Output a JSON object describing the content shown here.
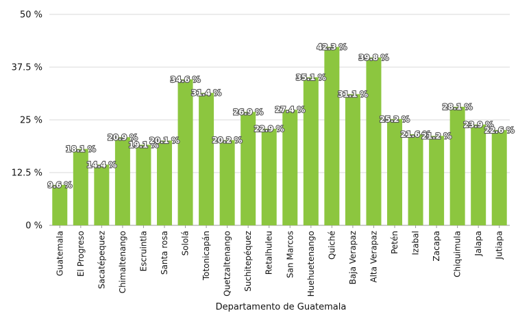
{
  "chart_data": {
    "type": "bar",
    "title": "",
    "xlabel": "Departamento de Guatemala",
    "ylabel": "",
    "ylim": [
      0,
      50
    ],
    "yticks": [
      "0 %",
      "12.5 %",
      "25 %",
      "37.5 %",
      "50 %"
    ],
    "ytick_values": [
      0,
      12.5,
      25,
      37.5,
      50
    ],
    "grid": true,
    "bar_color": "#8cc63f",
    "categories": [
      "Guatemala",
      "El Progreso",
      "Sacatépequez",
      "Chimaltenango",
      "Escruintla",
      "Santa rosa",
      "Sololá",
      "Totonicapán",
      "Quetzaltenango",
      "Suchitepéquez",
      "Retalhuleu",
      "San Marcos",
      "Huehuetenango",
      "Quiché",
      "Baja Verapaz",
      "Alta Verapaz",
      "Petén",
      "Izabal",
      "Zacapa",
      "Chiquimula",
      "Jalapa",
      "Jutiapa"
    ],
    "values": [
      9.6,
      18.1,
      14.4,
      20.9,
      19.1,
      20.1,
      34.6,
      31.4,
      20.2,
      26.9,
      22.9,
      27.4,
      35.1,
      42.3,
      31.1,
      39.8,
      25.2,
      21.6,
      21.2,
      28.1,
      23.9,
      22.6
    ],
    "value_labels": [
      "9.6 %",
      "18.1 %",
      "14.4 %",
      "20.9 %",
      "19.1 %",
      "20.1 %",
      "34.6 %",
      "31.4 %",
      "20.2 %",
      "26.9 %",
      "22.9 %",
      "27.4 %",
      "35.1 %",
      "42.3 %",
      "31.1 %",
      "39.8 %",
      "25.2 %",
      "21.6 %",
      "21.2 %",
      "28.1 %",
      "23.9 %",
      "22.6 %"
    ]
  }
}
